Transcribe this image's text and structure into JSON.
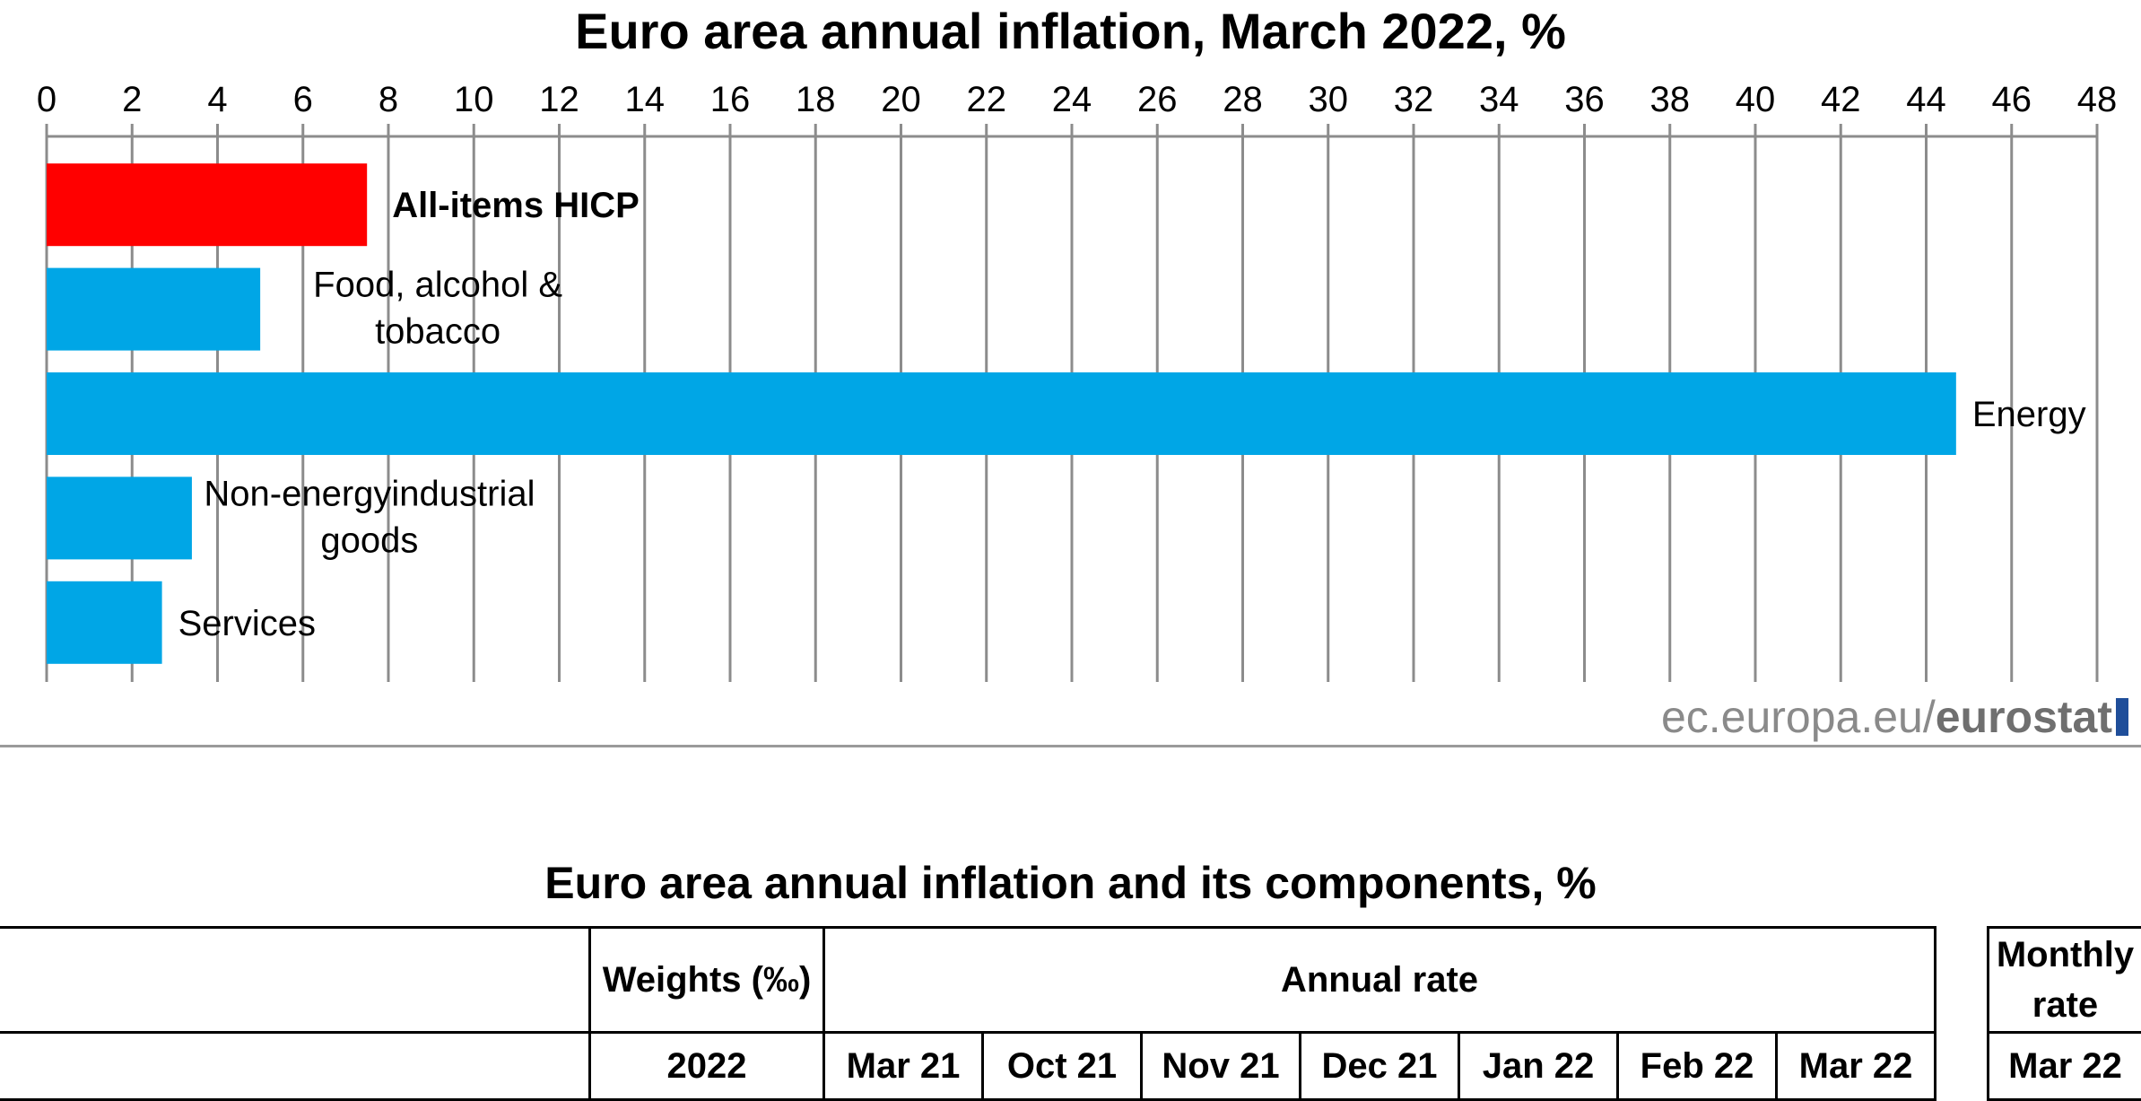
{
  "chart_data": {
    "type": "bar",
    "orientation": "horizontal",
    "title": "Euro area annual inflation, March 2022, %",
    "categories": [
      "All-items HICP",
      "Food, alcohol & tobacco",
      "Energy",
      "Non-energy industrial goods",
      "Services"
    ],
    "category_lines": [
      [
        "All-items HICP"
      ],
      [
        "Food, alcohol &",
        "tobacco"
      ],
      [
        "Energy"
      ],
      [
        "Non-energyindustrial",
        "goods"
      ],
      [
        "Services"
      ]
    ],
    "values": [
      7.5,
      5.0,
      44.7,
      3.4,
      2.7
    ],
    "xlim": [
      0,
      48
    ],
    "xticks": [
      "0",
      "2",
      "4",
      "6",
      "8",
      "10",
      "12",
      "14",
      "16",
      "18",
      "20",
      "22",
      "24",
      "26",
      "28",
      "30",
      "32",
      "34",
      "36",
      "38",
      "40",
      "42",
      "44",
      "46",
      "48"
    ],
    "grid": true,
    "colors": {
      "headline": "#ff0000",
      "components": "#00a6e6"
    }
  },
  "source": {
    "prefix": "ec.europa.eu/",
    "brand": "eurostat"
  },
  "table": {
    "title": "Euro area annual inflation and its components, %",
    "weights_header": "Weights (‰)",
    "weights_year": "2022",
    "annual_rate_header": "Annual rate",
    "months": [
      "Mar 21",
      "Oct 21",
      "Nov 21",
      "Dec 21",
      "Jan 22",
      "Feb 22",
      "Mar 22"
    ],
    "monthly_header": "Monthly rate",
    "monthly_month": "Mar 22"
  }
}
